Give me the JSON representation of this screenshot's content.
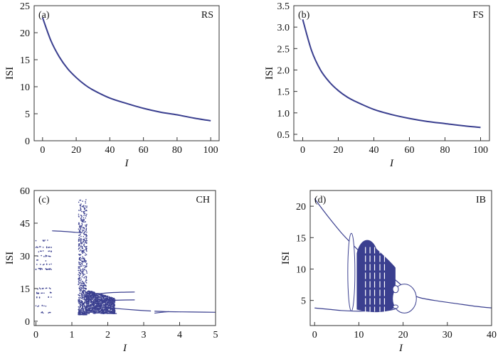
{
  "chart_data": [
    {
      "type": "line",
      "panel_label": "(a)",
      "model_label": "RS",
      "xlabel": "I",
      "ylabel": "ISI",
      "xlim": [
        -5,
        105
      ],
      "ylim": [
        0,
        25
      ],
      "x_ticks": [
        0,
        20,
        40,
        60,
        80,
        100
      ],
      "y_ticks": [
        0,
        5,
        10,
        15,
        20,
        25
      ],
      "x_tick_labels": [
        "0",
        "20",
        "40",
        "60",
        "80",
        "100"
      ],
      "y_tick_labels": [
        "0",
        "5",
        "10",
        "15",
        "20",
        "25"
      ],
      "color": "#3a3f8f",
      "series": [
        {
          "x": [
            0,
            5,
            10,
            15,
            20,
            25,
            30,
            40,
            50,
            60,
            70,
            80,
            90,
            100
          ],
          "y": [
            22.8,
            18.5,
            15.5,
            13.3,
            11.7,
            10.4,
            9.4,
            7.9,
            6.9,
            6.0,
            5.3,
            4.8,
            4.2,
            3.7
          ]
        }
      ]
    },
    {
      "type": "line",
      "panel_label": "(b)",
      "model_label": "FS",
      "xlabel": "I",
      "ylabel": "ISI",
      "xlim": [
        -5,
        105
      ],
      "ylim": [
        0.35,
        3.5
      ],
      "x_ticks": [
        0,
        20,
        40,
        60,
        80,
        100
      ],
      "y_ticks": [
        0.5,
        1.0,
        1.5,
        2.0,
        2.5,
        3.0,
        3.5
      ],
      "x_tick_labels": [
        "0",
        "20",
        "40",
        "60",
        "80",
        "100"
      ],
      "y_tick_labels": [
        "0.5",
        "1.0",
        "1.5",
        "2.0",
        "2.5",
        "3.0",
        "3.5"
      ],
      "color": "#3a3f8f",
      "series": [
        {
          "x": [
            0,
            5,
            10,
            15,
            20,
            25,
            30,
            40,
            50,
            60,
            70,
            80,
            90,
            100
          ],
          "y": [
            3.18,
            2.45,
            2.0,
            1.72,
            1.52,
            1.37,
            1.26,
            1.08,
            0.96,
            0.87,
            0.8,
            0.75,
            0.7,
            0.66
          ]
        }
      ]
    },
    {
      "type": "scatter",
      "panel_label": "(c)",
      "model_label": "CH",
      "xlabel": "I",
      "ylabel": "ISI",
      "xlim": [
        -0.05,
        5
      ],
      "ylim": [
        -2,
        60
      ],
      "x_ticks": [
        0,
        1,
        2,
        3,
        4,
        5
      ],
      "y_ticks": [
        0,
        15,
        30,
        45,
        60
      ],
      "x_tick_labels": [
        "0",
        "1",
        "2",
        "3",
        "4",
        "5"
      ],
      "y_tick_labels": [
        "0",
        "15",
        "30",
        "45",
        "60"
      ],
      "color": "#3a3f8f",
      "lines": [
        {
          "x": [
            0.45,
            0.8,
            1.1,
            1.3
          ],
          "y": [
            41.5,
            41.2,
            40.8,
            40.6
          ]
        },
        {
          "x": [
            3.3,
            3.6,
            4.0,
            4.5,
            5.0
          ],
          "y": [
            4.6,
            4.4,
            4.3,
            4.2,
            4.1
          ]
        },
        {
          "x": [
            3.3,
            3.5,
            3.7
          ],
          "y": [
            3.7,
            4.1,
            4.4
          ]
        },
        {
          "x": [
            1.6,
            2.0,
            2.4,
            2.8,
            3.2
          ],
          "y": [
            6.8,
            6.2,
            5.6,
            5.1,
            4.7
          ]
        },
        {
          "x": [
            1.6,
            2.0,
            2.4,
            2.75
          ],
          "y": [
            12.3,
            13.0,
            13.3,
            13.4
          ]
        },
        {
          "x": [
            1.6,
            2.0,
            2.4,
            2.75
          ],
          "y": [
            9.0,
            9.5,
            9.7,
            9.8
          ]
        },
        {
          "x": [
            1.6,
            2.0,
            2.25
          ],
          "y": [
            3.9,
            3.6,
            3.5
          ]
        }
      ],
      "scatter_regions": [
        {
          "x": [
            0.0,
            0.45
          ],
          "y": [
            3,
            38
          ],
          "n": 110
        },
        {
          "x": [
            1.18,
            1.42
          ],
          "y": [
            3,
            56
          ],
          "n": 700
        },
        {
          "x": [
            1.4,
            2.2
          ],
          "y": [
            3.5,
            14.5
          ],
          "n": 1200
        }
      ]
    },
    {
      "type": "line",
      "panel_label": "(d)",
      "model_label": "IB",
      "xlabel": "I",
      "ylabel": "ISI",
      "xlim": [
        -1,
        40
      ],
      "ylim": [
        1,
        22.5
      ],
      "x_ticks": [
        0,
        10,
        20,
        30,
        40
      ],
      "y_ticks": [
        5,
        10,
        15,
        20
      ],
      "x_tick_labels": [
        "0",
        "10",
        "20",
        "30",
        "40"
      ],
      "y_tick_labels": [
        "5",
        "10",
        "15",
        "20"
      ],
      "color": "#3a3f8f",
      "series": [
        {
          "x": [
            0,
            2,
            4,
            6,
            8,
            10,
            12,
            14,
            16,
            18,
            20,
            22,
            24,
            28,
            32,
            36,
            40
          ],
          "y": [
            21.2,
            19.3,
            17.5,
            15.8,
            14.3,
            12.9,
            11.6,
            10.4,
            9.4,
            8.4,
            7.2,
            6.0,
            5.4,
            4.9,
            4.5,
            4.1,
            3.8
          ]
        },
        {
          "x": [
            0,
            3,
            6,
            9,
            12,
            15,
            18,
            20,
            22,
            23
          ],
          "y": [
            3.8,
            3.6,
            3.4,
            3.3,
            3.3,
            3.3,
            3.6,
            4.2,
            5.0,
            5.4
          ]
        }
      ],
      "chaotic_band": {
        "x": [
          9.6,
          18.2
        ],
        "top_y": 15.0,
        "bottom_y": 3.0
      }
    }
  ]
}
